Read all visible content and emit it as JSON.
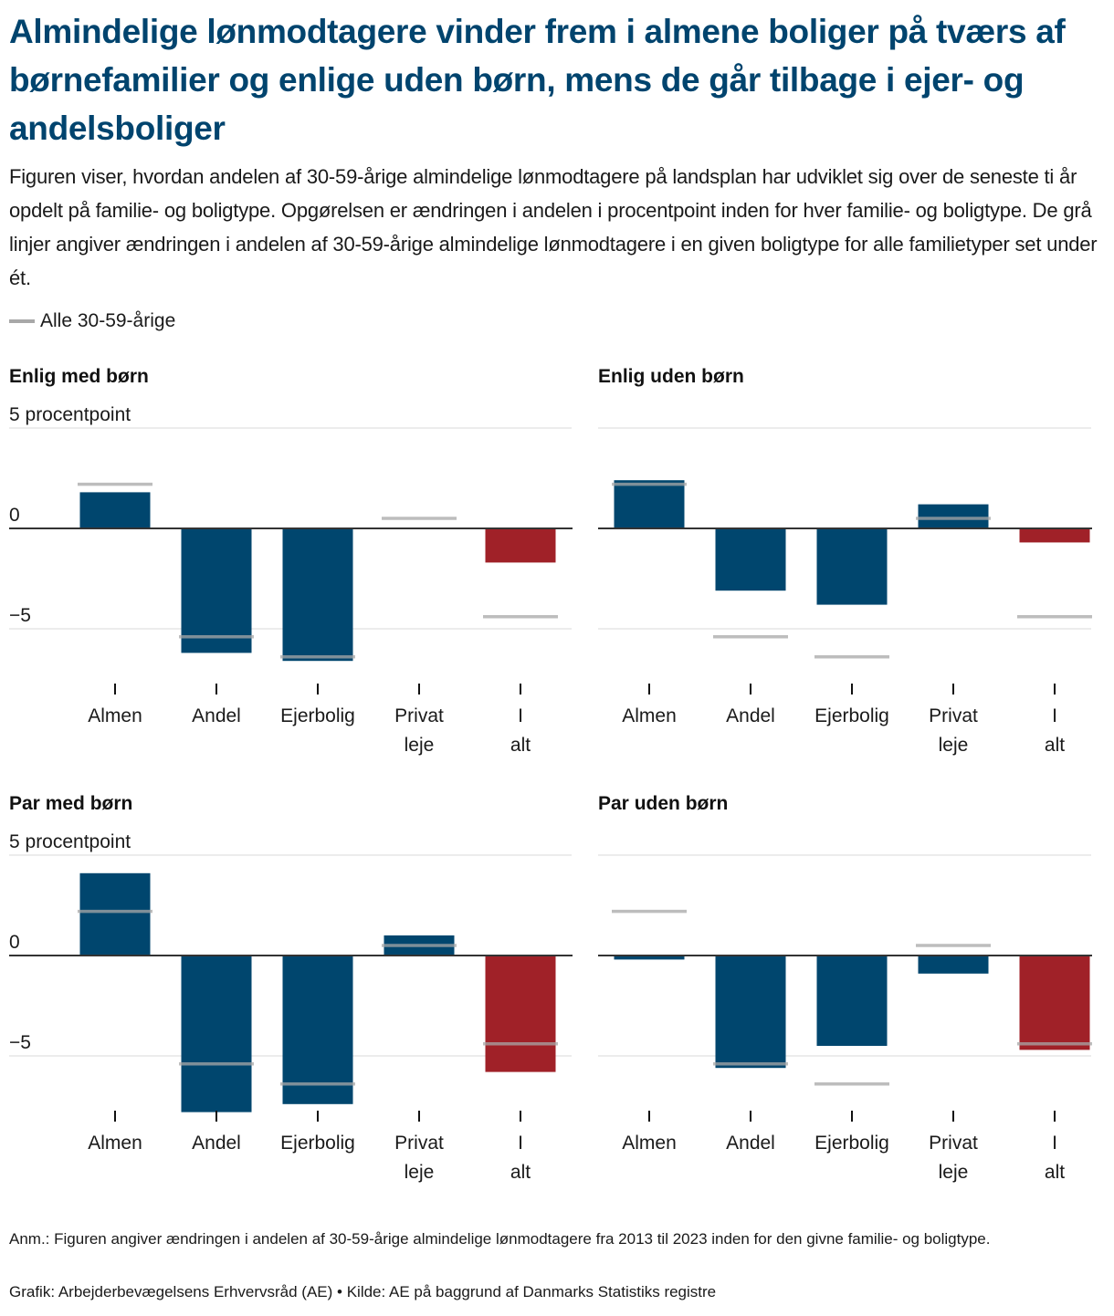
{
  "header": {
    "title": "Almindelige lønmodtagere vinder frem i almene boliger på tværs af børnefamilier og enlige uden børn, mens de går tilbage i ejer- og andelsboliger",
    "subtitle": "Figuren viser, hvordan andelen af 30-59-årige almindelige lønmodtagere på landsplan har udviklet sig over de seneste ti år opdelt på familie- og boligtype. Opgørelsen er ændringen i andelen i procentpoint inden for hver familie- og boligtype. De grå linjer angiver ændringen i andelen af 30-59-årige almindelige lønmodtagere i en given boligtype for alle familietyper set under ét."
  },
  "legend": {
    "label": "Alle 30-59-årige",
    "color": "#a8a8a8"
  },
  "colors": {
    "bar": "#00466e",
    "total_bar": "#a02128",
    "reference": "#a8a8a8",
    "zero_line": "#333333",
    "grid": "#e6e6e6"
  },
  "chart_data": [
    {
      "type": "bar",
      "title": "Enlig med børn",
      "ylabel": "5 procentpoint",
      "yticks": [
        "5 procentpoint",
        "0",
        "−5"
      ],
      "ytick_values": [
        5,
        0,
        -5
      ],
      "ylim": [
        -8,
        5
      ],
      "categories": [
        "Almen",
        "Andel",
        "Ejerbolig",
        "Privat leje",
        "I alt"
      ],
      "series": [
        {
          "name": "Enlig med børn",
          "values": [
            1.8,
            -6.2,
            -6.6,
            0.0,
            -1.7
          ]
        },
        {
          "name": "Alle 30-59-årige",
          "values": [
            2.2,
            -5.4,
            -6.4,
            0.5,
            -4.4
          ]
        }
      ]
    },
    {
      "type": "bar",
      "title": "Enlig uden børn",
      "ylabel": "",
      "yticks": [
        "",
        "",
        ""
      ],
      "ytick_values": [
        5,
        0,
        -5
      ],
      "ylim": [
        -8,
        5
      ],
      "categories": [
        "Almen",
        "Andel",
        "Ejerbolig",
        "Privat leje",
        "I alt"
      ],
      "series": [
        {
          "name": "Enlig uden børn",
          "values": [
            2.4,
            -3.1,
            -3.8,
            1.2,
            -0.7
          ]
        },
        {
          "name": "Alle 30-59-årige",
          "values": [
            2.2,
            -5.4,
            -6.4,
            0.5,
            -4.4
          ]
        }
      ]
    },
    {
      "type": "bar",
      "title": "Par med børn",
      "ylabel": "5 procentpoint",
      "yticks": [
        "5 procentpoint",
        "0",
        "−5"
      ],
      "ytick_values": [
        5,
        0,
        -5
      ],
      "ylim": [
        -8,
        5
      ],
      "categories": [
        "Almen",
        "Andel",
        "Ejerbolig",
        "Privat leje",
        "I alt"
      ],
      "series": [
        {
          "name": "Par med børn",
          "values": [
            4.1,
            -7.8,
            -7.4,
            1.0,
            -5.8
          ]
        },
        {
          "name": "Alle 30-59-årige",
          "values": [
            2.2,
            -5.4,
            -6.4,
            0.5,
            -4.4
          ]
        }
      ]
    },
    {
      "type": "bar",
      "title": "Par uden børn",
      "ylabel": "",
      "yticks": [
        "",
        "",
        ""
      ],
      "ytick_values": [
        5,
        0,
        -5
      ],
      "ylim": [
        -8,
        5
      ],
      "categories": [
        "Almen",
        "Andel",
        "Ejerbolig",
        "Privat leje",
        "I alt"
      ],
      "series": [
        {
          "name": "Par uden børn",
          "values": [
            -0.2,
            -5.6,
            -4.5,
            -0.9,
            -4.7
          ]
        },
        {
          "name": "Alle 30-59-årige",
          "values": [
            2.2,
            -5.4,
            -6.4,
            0.5,
            -4.4
          ]
        }
      ]
    }
  ],
  "footer": {
    "note": "Anm.: Figuren angiver ændringen i andelen af 30-59-årige almindelige lønmodtagere fra 2013 til 2023 inden for den givne familie- og boligtype.",
    "source": "Grafik: Arbejderbevægelsens Erhvervsråd (AE) • Kilde: AE på baggrund af Danmarks Statistiks registre"
  }
}
